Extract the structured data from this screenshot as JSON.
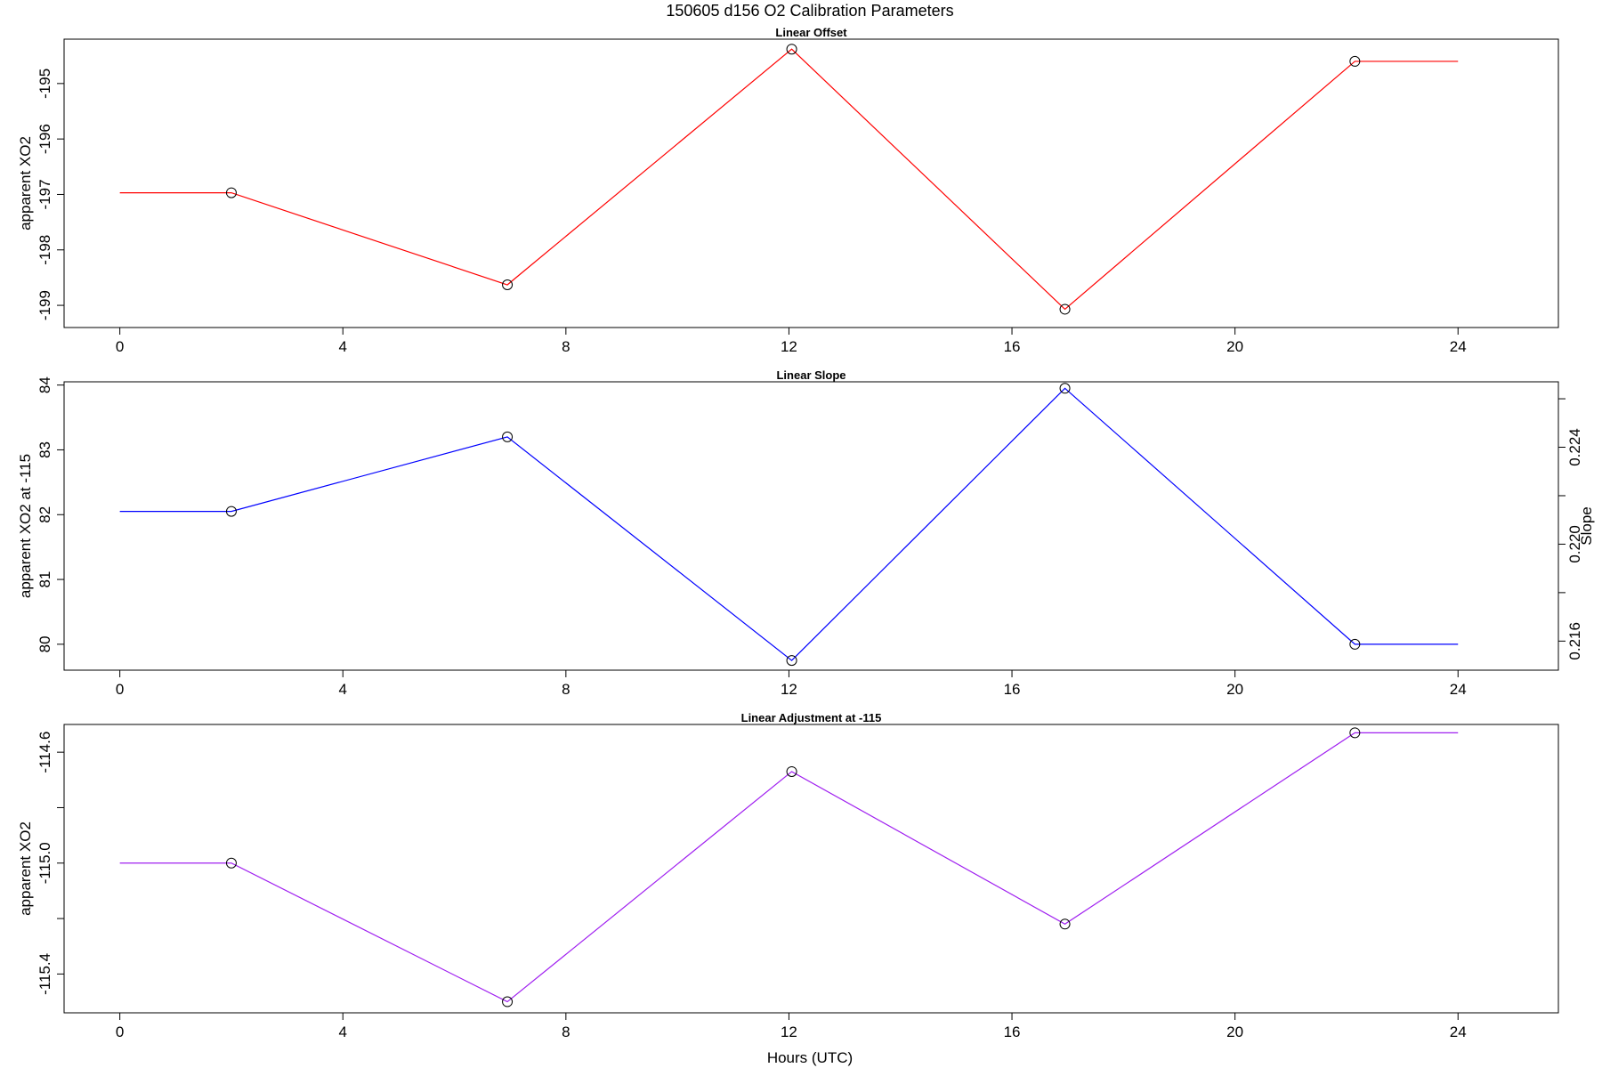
{
  "figure": {
    "title": "150605   d156   O2 Calibration Parameters",
    "xlabel": "Hours (UTC)"
  },
  "chart_data": [
    {
      "type": "line",
      "title": "Linear Offset",
      "xlabel": "",
      "ylabel": "apparent XO2",
      "xlim": [
        -1,
        25.8
      ],
      "ylim": [
        -199.4,
        -194.2
      ],
      "x_ticks": [
        0,
        4,
        8,
        12,
        16,
        20,
        24
      ],
      "y_ticks": [
        -199,
        -198,
        -197,
        -196,
        -195
      ],
      "series": [
        {
          "name": "Linear Offset",
          "color": "#ff0000",
          "x": [
            0,
            2,
            6.95,
            12.05,
            16.95,
            22.15,
            24
          ],
          "values": [
            -196.97,
            -196.97,
            -198.63,
            -194.38,
            -199.07,
            -194.6,
            -194.6
          ],
          "marker_indices": [
            1,
            2,
            3,
            4,
            5
          ]
        }
      ]
    },
    {
      "type": "line",
      "title": "Linear Slope",
      "xlabel": "",
      "ylabel": "apparent XO2 at -115",
      "ylabel_right": "Slope",
      "xlim": [
        -1,
        25.8
      ],
      "ylim": [
        79.6,
        84.05
      ],
      "x_ticks": [
        0,
        4,
        8,
        12,
        16,
        20,
        24
      ],
      "y_ticks": [
        80,
        81,
        82,
        83,
        84
      ],
      "y2lim": [
        0.2148,
        0.2267
      ],
      "y2_ticks": [
        0.216,
        0.218,
        0.22,
        0.222,
        0.224,
        0.226
      ],
      "y2_tick_labels": [
        "0.216",
        "",
        "0.220",
        "",
        "0.224",
        ""
      ],
      "series": [
        {
          "name": "Linear Slope",
          "color": "#0000ff",
          "x": [
            0,
            2,
            6.95,
            12.05,
            16.95,
            22.15,
            24
          ],
          "values": [
            82.05,
            82.05,
            83.2,
            79.75,
            83.95,
            80,
            80
          ],
          "marker_indices": [
            1,
            2,
            3,
            4,
            5
          ]
        }
      ]
    },
    {
      "type": "line",
      "title": "Linear Adjustment at -115",
      "xlabel": "Hours (UTC)",
      "ylabel": "apparent XO2",
      "xlim": [
        -1,
        25.8
      ],
      "ylim": [
        -115.54,
        -114.5
      ],
      "x_ticks": [
        0,
        4,
        8,
        12,
        16,
        20,
        24
      ],
      "y_ticks": [
        -115.4,
        -115.2,
        -115.0,
        -114.8,
        -114.6
      ],
      "y_tick_labels": [
        "-115.4",
        "",
        "-115.0",
        "",
        "-114.6"
      ],
      "series": [
        {
          "name": "Linear Adjustment at -115",
          "color": "#a020f0",
          "x": [
            0,
            2,
            6.95,
            12.05,
            16.95,
            22.15,
            24
          ],
          "values": [
            -115.0,
            -115.0,
            -115.5,
            -114.67,
            -115.22,
            -114.53,
            -114.53
          ],
          "marker_indices": [
            1,
            2,
            3,
            4,
            5
          ]
        }
      ]
    }
  ]
}
